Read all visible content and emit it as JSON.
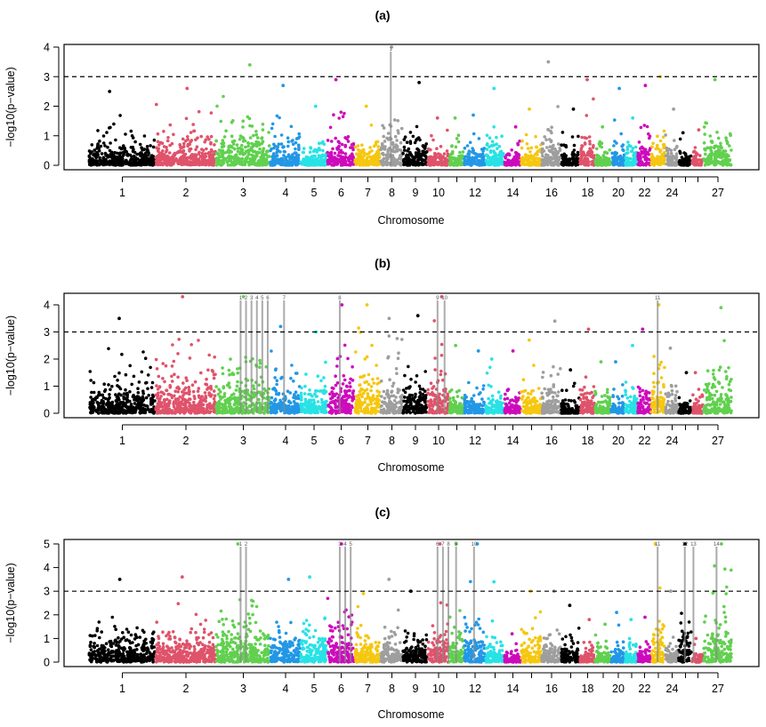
{
  "chart_data": [
    {
      "type": "scatter",
      "subtype": "manhattan",
      "title": "(a)",
      "xlabel": "Chromosome",
      "ylabel": "−log10(p−value)",
      "ylim": [
        0,
        4
      ],
      "yticks": [
        "0",
        "1",
        "2",
        "3",
        "4"
      ],
      "threshold": 3,
      "chromosomes": [
        1,
        2,
        3,
        4,
        5,
        6,
        7,
        8,
        9,
        10,
        11,
        12,
        13,
        14,
        15,
        16,
        17,
        18,
        19,
        20,
        21,
        22,
        23,
        24,
        25,
        26,
        27
      ],
      "xtick_labels": [
        "1",
        "2",
        "3",
        "4",
        "5",
        "6",
        "7",
        "8",
        "9",
        "10",
        "",
        "12",
        "",
        "14",
        "",
        "16",
        "",
        "18",
        "",
        "20",
        "",
        "22",
        "",
        "24",
        "",
        "",
        "27"
      ],
      "peak_values": [
        2.5,
        2.6,
        3.4,
        2.7,
        2.0,
        2.9,
        2.0,
        4.0,
        2.8,
        1.6,
        1.6,
        1.7,
        2.6,
        1.3,
        1.9,
        3.5,
        1.9,
        2.9,
        1.3,
        2.6,
        1.6,
        2.7,
        3.0,
        1.9,
        1.1,
        1.2,
        2.9
      ],
      "highlighted_snps": [
        {
          "label": "1",
          "chromosome": 8,
          "value": 4.0
        }
      ]
    },
    {
      "type": "scatter",
      "subtype": "manhattan",
      "title": "(b)",
      "xlabel": "Chromosome",
      "ylabel": "−log10(p−value)",
      "ylim": [
        0,
        4.4
      ],
      "yticks": [
        "0",
        "1",
        "2",
        "3",
        "4"
      ],
      "threshold": 3,
      "chromosomes": [
        1,
        2,
        3,
        4,
        5,
        6,
        7,
        8,
        9,
        10,
        11,
        12,
        13,
        14,
        15,
        16,
        17,
        18,
        19,
        20,
        21,
        22,
        23,
        24,
        25,
        26,
        27
      ],
      "xtick_labels": [
        "1",
        "2",
        "3",
        "4",
        "5",
        "6",
        "7",
        "8",
        "9",
        "10",
        "",
        "12",
        "",
        "14",
        "",
        "16",
        "",
        "18",
        "",
        "20",
        "",
        "22",
        "",
        "24",
        "",
        "",
        "27"
      ],
      "peak_values": [
        3.5,
        4.3,
        4.3,
        3.2,
        3.0,
        4.0,
        4.0,
        3.5,
        3.6,
        4.3,
        2.5,
        2.3,
        2.0,
        2.3,
        2.7,
        3.4,
        1.6,
        3.1,
        1.9,
        1.9,
        2.5,
        3.1,
        4.0,
        2.4,
        1.5,
        1.5,
        3.9
      ],
      "highlighted_snps": [
        {
          "label": "1",
          "chromosome": 3,
          "value": 4.3
        },
        {
          "label": "2",
          "chromosome": 3,
          "value": 4.3
        },
        {
          "label": "3",
          "chromosome": 3,
          "value": 4.3
        },
        {
          "label": "4",
          "chromosome": 3,
          "value": 4.3
        },
        {
          "label": "5",
          "chromosome": 3,
          "value": 4.3
        },
        {
          "label": "6",
          "chromosome": 3,
          "value": 4.3
        },
        {
          "label": "7",
          "chromosome": 4,
          "value": 3.2
        },
        {
          "label": "8",
          "chromosome": 6,
          "value": 4.0
        },
        {
          "label": "9",
          "chromosome": 10,
          "value": 4.3
        },
        {
          "label": "10",
          "chromosome": 10,
          "value": 4.3
        },
        {
          "label": "11",
          "chromosome": 23,
          "value": 4.0
        }
      ]
    },
    {
      "type": "scatter",
      "subtype": "manhattan",
      "title": "(c)",
      "xlabel": "Chromosome",
      "ylabel": "−log10(p−value)",
      "ylim": [
        0,
        5
      ],
      "yticks": [
        "0",
        "1",
        "2",
        "3",
        "4",
        "5"
      ],
      "threshold": 3,
      "chromosomes": [
        1,
        2,
        3,
        4,
        5,
        6,
        7,
        8,
        9,
        10,
        11,
        12,
        13,
        14,
        15,
        16,
        17,
        18,
        19,
        20,
        21,
        22,
        23,
        24,
        25,
        26,
        27
      ],
      "xtick_labels": [
        "1",
        "2",
        "3",
        "4",
        "5",
        "6",
        "7",
        "8",
        "9",
        "10",
        "",
        "12",
        "",
        "14",
        "",
        "16",
        "",
        "18",
        "",
        "20",
        "",
        "22",
        "",
        "24",
        "",
        "",
        "27"
      ],
      "peak_values": [
        3.5,
        3.6,
        5.0,
        3.5,
        3.6,
        5.0,
        2.9,
        3.5,
        3.0,
        5.0,
        5.0,
        5.0,
        3.4,
        1.2,
        3.0,
        3.0,
        2.4,
        1.8,
        1.6,
        2.1,
        1.8,
        1.9,
        5.0,
        3.0,
        5.0,
        1.0,
        5.0
      ],
      "highlighted_snps": [
        {
          "label": "1",
          "chromosome": 3,
          "value": 5.0
        },
        {
          "label": "2",
          "chromosome": 3,
          "value": 5.0
        },
        {
          "label": "3",
          "chromosome": 6,
          "value": 5.0
        },
        {
          "label": "4",
          "chromosome": 6,
          "value": 5.0
        },
        {
          "label": "5",
          "chromosome": 6,
          "value": 5.0
        },
        {
          "label": "6",
          "chromosome": 10,
          "value": 5.0
        },
        {
          "label": "7",
          "chromosome": 10,
          "value": 5.0
        },
        {
          "label": "8",
          "chromosome": 10,
          "value": 5.0
        },
        {
          "label": "9",
          "chromosome": 11,
          "value": 5.0
        },
        {
          "label": "10",
          "chromosome": 12,
          "value": 5.0
        },
        {
          "label": "11",
          "chromosome": 23,
          "value": 5.0
        },
        {
          "label": "12",
          "chromosome": 25,
          "value": 5.0
        },
        {
          "label": "13",
          "chromosome": 25,
          "value": 5.0
        },
        {
          "label": "14",
          "chromosome": 27,
          "value": 5.0
        }
      ]
    }
  ],
  "colors": [
    "#000000",
    "#DF536B",
    "#61D04F",
    "#2297E6",
    "#28E2E5",
    "#CD0BBC",
    "#F5C710",
    "#9E9E9E"
  ],
  "grid": false,
  "legend": "none"
}
